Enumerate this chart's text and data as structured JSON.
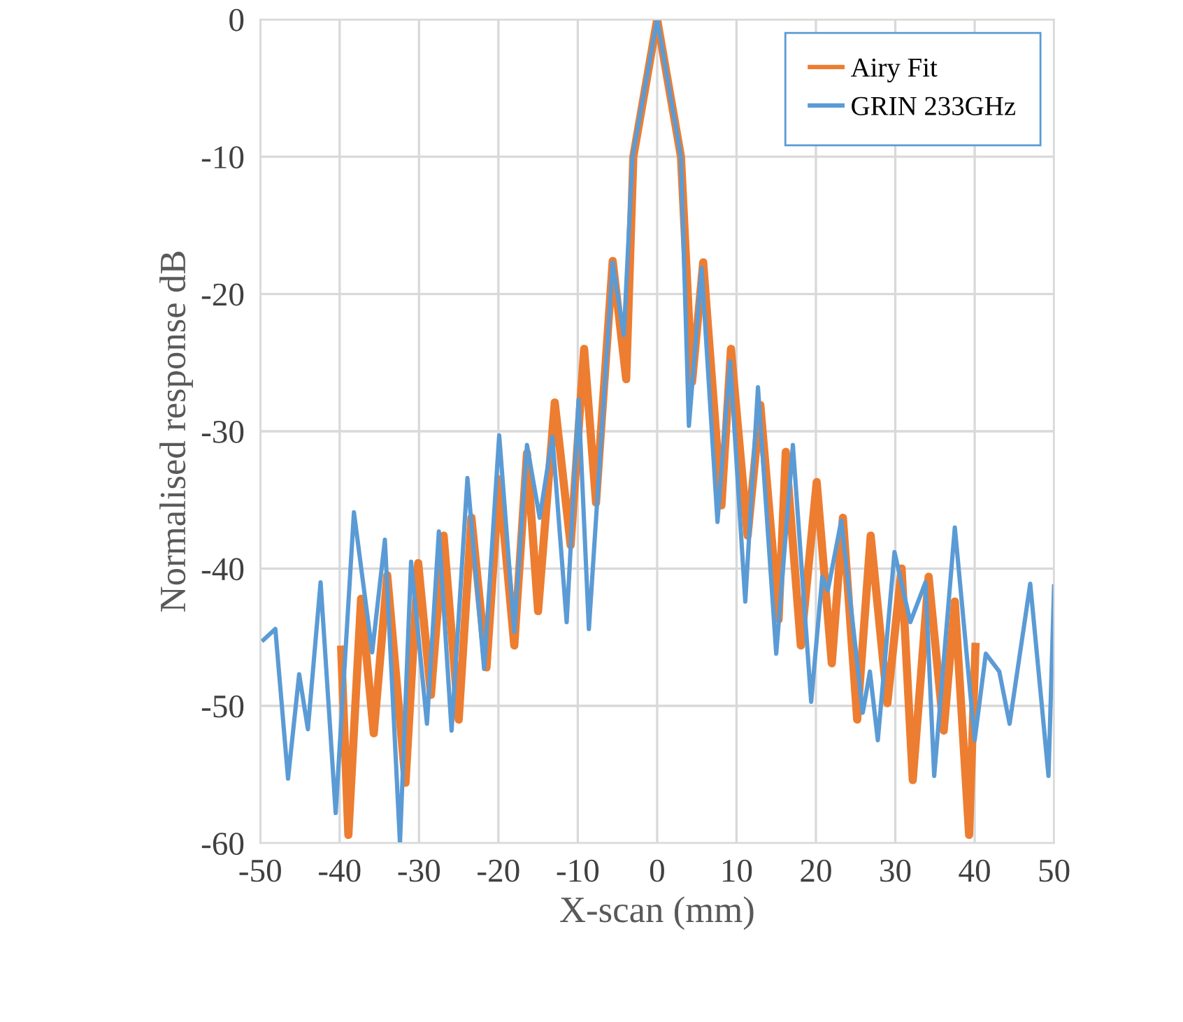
{
  "chart_data": {
    "type": "line",
    "xlabel": "X-scan (mm)",
    "ylabel": "Normalised response dB",
    "xlim": [
      -50,
      50
    ],
    "ylim": [
      -60,
      0
    ],
    "xticks": [
      -50,
      -40,
      -30,
      -20,
      -10,
      0,
      10,
      20,
      30,
      40,
      50
    ],
    "yticks": [
      -60,
      -50,
      -40,
      -30,
      -20,
      -10,
      0
    ],
    "grid": true,
    "legend": "top right",
    "marker": "none",
    "line_style": "solid",
    "series": [
      {
        "name": "Airy Fit",
        "color": "#ed7d31",
        "x": [
          -39.8,
          -38.9,
          -37.3,
          -35.7,
          -34.0,
          -31.7,
          -30.1,
          -28.5,
          -26.9,
          -25.0,
          -23.4,
          -21.5,
          -19.9,
          -18.0,
          -16.4,
          -15.0,
          -12.9,
          -10.9,
          -9.2,
          -7.7,
          -5.6,
          -3.9,
          -3.0,
          0,
          3.0,
          4.4,
          5.8,
          8.1,
          9.3,
          11.4,
          13.0,
          15.3,
          16.2,
          18.1,
          20.1,
          22.0,
          23.4,
          25.2,
          26.9,
          29.0,
          30.8,
          32.2,
          34.2,
          36.1,
          37.5,
          39.3,
          40.1
        ],
        "values": [
          -45.9,
          -59.4,
          -42.2,
          -52.0,
          -40.5,
          -55.6,
          -39.6,
          -49.2,
          -37.6,
          -51.0,
          -36.3,
          -47.2,
          -33.5,
          -45.6,
          -31.6,
          -43.1,
          -27.9,
          -38.3,
          -24.0,
          -35.2,
          -17.6,
          -26.2,
          -10,
          0,
          -10,
          -26.4,
          -17.7,
          -35.4,
          -24.0,
          -37.6,
          -28.1,
          -43.7,
          -31.5,
          -45.6,
          -33.7,
          -46.9,
          -36.3,
          -51.0,
          -37.6,
          -49.8,
          -40.0,
          -55.4,
          -40.6,
          -51.8,
          -42.4,
          -59.4,
          -45.7
        ]
      },
      {
        "name": "GRIN 233GHz",
        "color": "#5b9bd5",
        "x": [
          -49.6,
          -48.1,
          -46.5,
          -45.1,
          -44.0,
          -42.4,
          -40.5,
          -38.2,
          -35.9,
          -34.3,
          -32.4,
          -31.0,
          -29.0,
          -27.5,
          -25.9,
          -23.9,
          -21.8,
          -19.9,
          -18.0,
          -16.4,
          -14.8,
          -13.2,
          -11.4,
          -9.9,
          -8.6,
          -5.6,
          -4.2,
          -3.1,
          0,
          3.0,
          4.0,
          5.6,
          7.6,
          9.2,
          11.1,
          12.7,
          15.0,
          17.1,
          19.4,
          20.8,
          21.5,
          23.2,
          25.9,
          26.8,
          27.8,
          29.9,
          31.9,
          33.8,
          34.9,
          37.5,
          40.0,
          41.4,
          43.1,
          44.4,
          47.0,
          49.3,
          50
        ],
        "values": [
          -45.2,
          -44.4,
          -55.3,
          -47.7,
          -51.7,
          -41.0,
          -57.8,
          -35.9,
          -46.1,
          -37.9,
          -60,
          -39.5,
          -51.3,
          -37.3,
          -51.8,
          -33.4,
          -47.3,
          -30.3,
          -44.6,
          -31.0,
          -36.3,
          -30.4,
          -43.9,
          -27.7,
          -44.4,
          -17.7,
          -23.0,
          -10,
          0,
          -10,
          -29.6,
          -18.1,
          -36.6,
          -24.9,
          -42.4,
          -26.8,
          -46.2,
          -31.0,
          -49.7,
          -40.6,
          -41.6,
          -36.5,
          -50.5,
          -47.5,
          -52.5,
          -38.8,
          -43.9,
          -41.0,
          -55.1,
          -37.0,
          -52.5,
          -46.2,
          -47.5,
          -51.3,
          -41.1,
          -55.1,
          -41.3
        ]
      }
    ]
  }
}
